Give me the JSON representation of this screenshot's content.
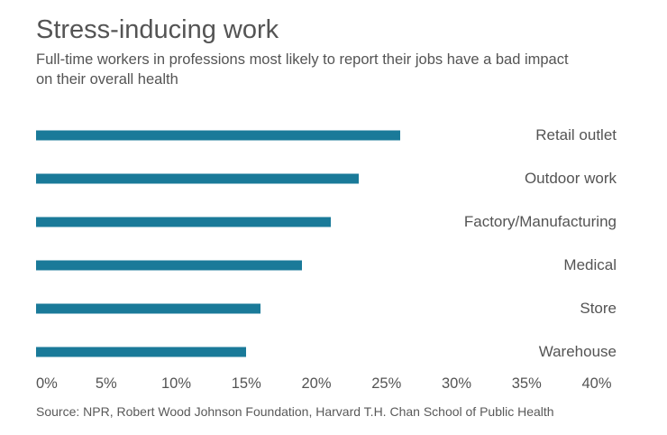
{
  "header": {
    "title": "Stress-inducing work",
    "subtitle": "Full-time workers in professions most likely to report their jobs have a bad impact on their overall health"
  },
  "chart_data": {
    "type": "bar",
    "orientation": "horizontal",
    "title": "Stress-inducing work",
    "subtitle": "Full-time workers in professions most likely to report their jobs have a bad impact on their overall health",
    "categories": [
      "Retail outlet",
      "Outdoor work",
      "Factory/Manufacturing",
      "Medical",
      "Store",
      "Warehouse"
    ],
    "values": [
      26,
      23,
      21,
      19,
      16,
      15
    ],
    "unit": "%",
    "xlim": [
      0,
      40
    ],
    "x_ticks": [
      "0%",
      "5%",
      "10%",
      "15%",
      "20%",
      "25%",
      "30%",
      "35%",
      "40%"
    ],
    "xlabel": "",
    "ylabel": "",
    "grid": false,
    "legend": false,
    "bar_color": "#1a7a99"
  },
  "footer": {
    "source": "Source: NPR, Robert Wood Johnson Foundation, Harvard T.H. Chan School of Public Health"
  },
  "colors": {
    "bar": "#1a7a99",
    "text": "#545454",
    "background": "#ffffff"
  }
}
